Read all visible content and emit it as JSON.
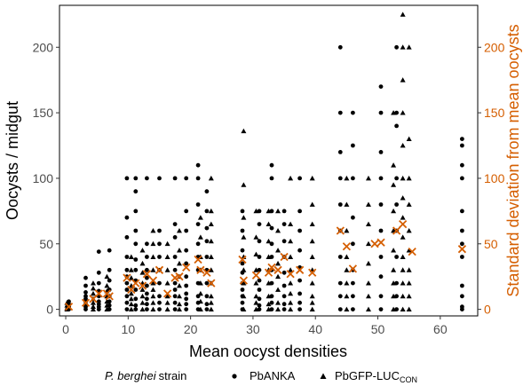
{
  "chart_data": {
    "type": "scatter",
    "xlabel": "Mean oocyst densities",
    "ylabel": "Oocysts / midgut",
    "y2label": "Standard deviation from mean oocysts",
    "xlim": [
      -1,
      66
    ],
    "ylim": [
      -5,
      232
    ],
    "xticks": [
      0,
      10,
      20,
      30,
      40,
      50,
      60
    ],
    "yticks": [
      0,
      50,
      100,
      150,
      200
    ],
    "y2ticks": [
      0,
      50,
      100,
      150,
      200
    ],
    "grid": false,
    "legend": {
      "position": "bottom",
      "title": "P. berghei",
      "title_suffix": "strain",
      "entries": [
        {
          "label": "PbANKA",
          "shape": "circle"
        },
        {
          "label": "PbGFP-LUC",
          "subscript": "CON",
          "shape": "triangle"
        }
      ]
    },
    "colors": {
      "points": "#000000",
      "sd_markers": "#d55e00",
      "y2_axis": "#d55e00"
    },
    "series": [
      {
        "name": "PbANKA",
        "marker": "circle",
        "columns": [
          {
            "x": 0.5,
            "y": [
              0,
              1,
              2,
              3,
              4,
              6
            ]
          },
          {
            "x": 3.2,
            "y": [
              0,
              2,
              4,
              6,
              8,
              10,
              13,
              18,
              24
            ]
          },
          {
            "x": 5.3,
            "y": [
              0,
              2,
              4,
              6,
              10,
              14,
              20,
              28,
              44
            ]
          },
          {
            "x": 7.0,
            "y": [
              0,
              3,
              6,
              10,
              15,
              22,
              30,
              45
            ]
          },
          {
            "x": 9.8,
            "y": [
              0,
              5,
              10,
              15,
              20,
              25,
              30,
              40,
              55,
              70,
              100
            ]
          },
          {
            "x": 11.2,
            "y": [
              0,
              3,
              8,
              15,
              22,
              30,
              38,
              50,
              60,
              75,
              90,
              100
            ]
          },
          {
            "x": 13.0,
            "y": [
              0,
              4,
              8,
              12,
              18,
              24,
              30,
              40,
              50,
              100
            ]
          },
          {
            "x": 15.0,
            "y": [
              0,
              5,
              10,
              20,
              30,
              40,
              50,
              60,
              100
            ]
          },
          {
            "x": 17.5,
            "y": [
              0,
              5,
              10,
              15,
              20,
              30,
              40,
              55,
              65,
              100
            ]
          },
          {
            "x": 19.3,
            "y": [
              0,
              4,
              8,
              12,
              18,
              25,
              35,
              45,
              60,
              75,
              100
            ]
          },
          {
            "x": 21.2,
            "y": [
              0,
              5,
              10,
              20,
              30,
              40,
              50,
              65,
              80,
              100,
              110
            ]
          },
          {
            "x": 22.6,
            "y": [
              0,
              4,
              10,
              20,
              30,
              40,
              52,
              62,
              75,
              90
            ]
          },
          {
            "x": 28.3,
            "y": [
              0,
              5,
              10,
              15,
              20,
              28,
              35,
              45,
              60,
              75
            ]
          },
          {
            "x": 31.0,
            "y": [
              0,
              3,
              8,
              15,
              22,
              30,
              40,
              52,
              65,
              75
            ]
          },
          {
            "x": 33.0,
            "y": [
              0,
              5,
              10,
              20,
              30,
              40,
              50,
              62,
              75,
              100,
              110
            ]
          },
          {
            "x": 35.0,
            "y": [
              0,
              4,
              10,
              18,
              28,
              40,
              52,
              65,
              75
            ]
          },
          {
            "x": 37.5,
            "y": [
              0,
              5,
              12,
              22,
              32,
              45,
              60,
              75,
              100
            ]
          },
          {
            "x": 44.0,
            "y": [
              0,
              10,
              20,
              40,
              60,
              80,
              100,
              120,
              150,
              200
            ]
          },
          {
            "x": 46.0,
            "y": [
              0,
              10,
              20,
              30,
              50,
              70,
              100,
              125,
              150
            ]
          },
          {
            "x": 50.5,
            "y": [
              0,
              10,
              25,
              40,
              60,
              80,
              100,
              120,
              150,
              170
            ]
          },
          {
            "x": 53.0,
            "y": [
              0,
              10,
              20,
              40,
              60,
              80,
              100,
              140,
              150,
              200
            ]
          },
          {
            "x": 63.5,
            "y": [
              0,
              2,
              10,
              18,
              40,
              50,
              60,
              75,
              100,
              110,
              125,
              130
            ]
          }
        ]
      },
      {
        "name": "PbGFP-LUC",
        "marker": "triangle",
        "columns": [
          {
            "x": 0.2,
            "y": [
              0,
              1,
              3,
              5
            ]
          },
          {
            "x": 4.4,
            "y": [
              0,
              2,
              5,
              8,
              12,
              16,
              20
            ]
          },
          {
            "x": 6.6,
            "y": [
              0,
              3,
              6,
              10,
              14,
              18,
              25
            ]
          },
          {
            "x": 10.5,
            "y": [
              0,
              4,
              8,
              12,
              18,
              24,
              30,
              40
            ]
          },
          {
            "x": 12.3,
            "y": [
              0,
              5,
              10,
              15,
              20,
              28,
              35,
              45
            ]
          },
          {
            "x": 14.0,
            "y": [
              0,
              5,
              10,
              15,
              20,
              30,
              40,
              50,
              60
            ]
          },
          {
            "x": 16.3,
            "y": [
              0,
              5,
              10,
              20,
              30,
              40,
              50
            ]
          },
          {
            "x": 18.2,
            "y": [
              0,
              4,
              10,
              18,
              25,
              35,
              45,
              60
            ]
          },
          {
            "x": 21.6,
            "y": [
              0,
              6,
              12,
              20,
              30,
              40,
              55,
              70
            ]
          },
          {
            "x": 23.3,
            "y": [
              0,
              5,
              10,
              20,
              30,
              40,
              52,
              65,
              75,
              100
            ]
          },
          {
            "x": 28.5,
            "y": [
              0,
              10,
              20,
              30,
              40,
              55,
              70,
              95,
              136
            ]
          },
          {
            "x": 30.5,
            "y": [
              0,
              5,
              10,
              20,
              30,
              42,
              55,
              75
            ]
          },
          {
            "x": 32.5,
            "y": [
              0,
              4,
              10,
              20,
              30,
              40,
              52,
              65,
              75
            ]
          },
          {
            "x": 34.0,
            "y": [
              0,
              5,
              15,
              25,
              35,
              45,
              60,
              75
            ]
          },
          {
            "x": 36.0,
            "y": [
              0,
              5,
              12,
              20,
              30,
              40,
              52,
              65,
              100
            ]
          },
          {
            "x": 39.5,
            "y": [
              0,
              5,
              10,
              20,
              30,
              40,
              52,
              65,
              80,
              100
            ]
          },
          {
            "x": 45.0,
            "y": [
              0,
              10,
              20,
              30,
              40,
              60,
              80,
              100
            ]
          },
          {
            "x": 48.5,
            "y": [
              0,
              10,
              20,
              35,
              50,
              65,
              80,
              100
            ]
          },
          {
            "x": 52.5,
            "y": [
              0,
              10,
              20,
              30,
              45,
              60,
              75,
              95,
              110,
              150
            ]
          },
          {
            "x": 54.0,
            "y": [
              0,
              10,
              20,
              30,
              40,
              55,
              70,
              85,
              100,
              125,
              150,
              175,
              200,
              225
            ]
          },
          {
            "x": 55.0,
            "y": [
              0,
              10,
              20,
              30,
              45,
              60,
              80,
              100,
              130,
              200
            ]
          }
        ]
      },
      {
        "name": "Standard deviation",
        "marker": "x",
        "axis": "right",
        "points": [
          [
            0.5,
            2
          ],
          [
            3.2,
            5
          ],
          [
            4.4,
            8
          ],
          [
            5.3,
            12
          ],
          [
            6.6,
            12
          ],
          [
            7.0,
            10
          ],
          [
            9.8,
            24
          ],
          [
            10.5,
            15
          ],
          [
            11.2,
            20
          ],
          [
            12.3,
            18
          ],
          [
            13.0,
            27
          ],
          [
            14.0,
            22
          ],
          [
            15.0,
            30
          ],
          [
            16.3,
            12
          ],
          [
            17.5,
            24
          ],
          [
            18.2,
            25
          ],
          [
            19.3,
            32
          ],
          [
            21.2,
            38
          ],
          [
            21.6,
            30
          ],
          [
            22.6,
            28
          ],
          [
            23.3,
            20
          ],
          [
            28.3,
            38
          ],
          [
            28.5,
            22
          ],
          [
            30.5,
            26
          ],
          [
            32.5,
            28
          ],
          [
            33.0,
            32
          ],
          [
            34.0,
            30
          ],
          [
            35.0,
            40
          ],
          [
            36.0,
            27
          ],
          [
            37.5,
            30
          ],
          [
            39.5,
            28
          ],
          [
            44.0,
            60
          ],
          [
            45.0,
            48
          ],
          [
            46.0,
            31
          ],
          [
            49.5,
            50
          ],
          [
            50.5,
            51
          ],
          [
            53.0,
            60
          ],
          [
            54.0,
            65
          ],
          [
            55.5,
            44
          ],
          [
            63.5,
            46
          ]
        ]
      }
    ]
  }
}
